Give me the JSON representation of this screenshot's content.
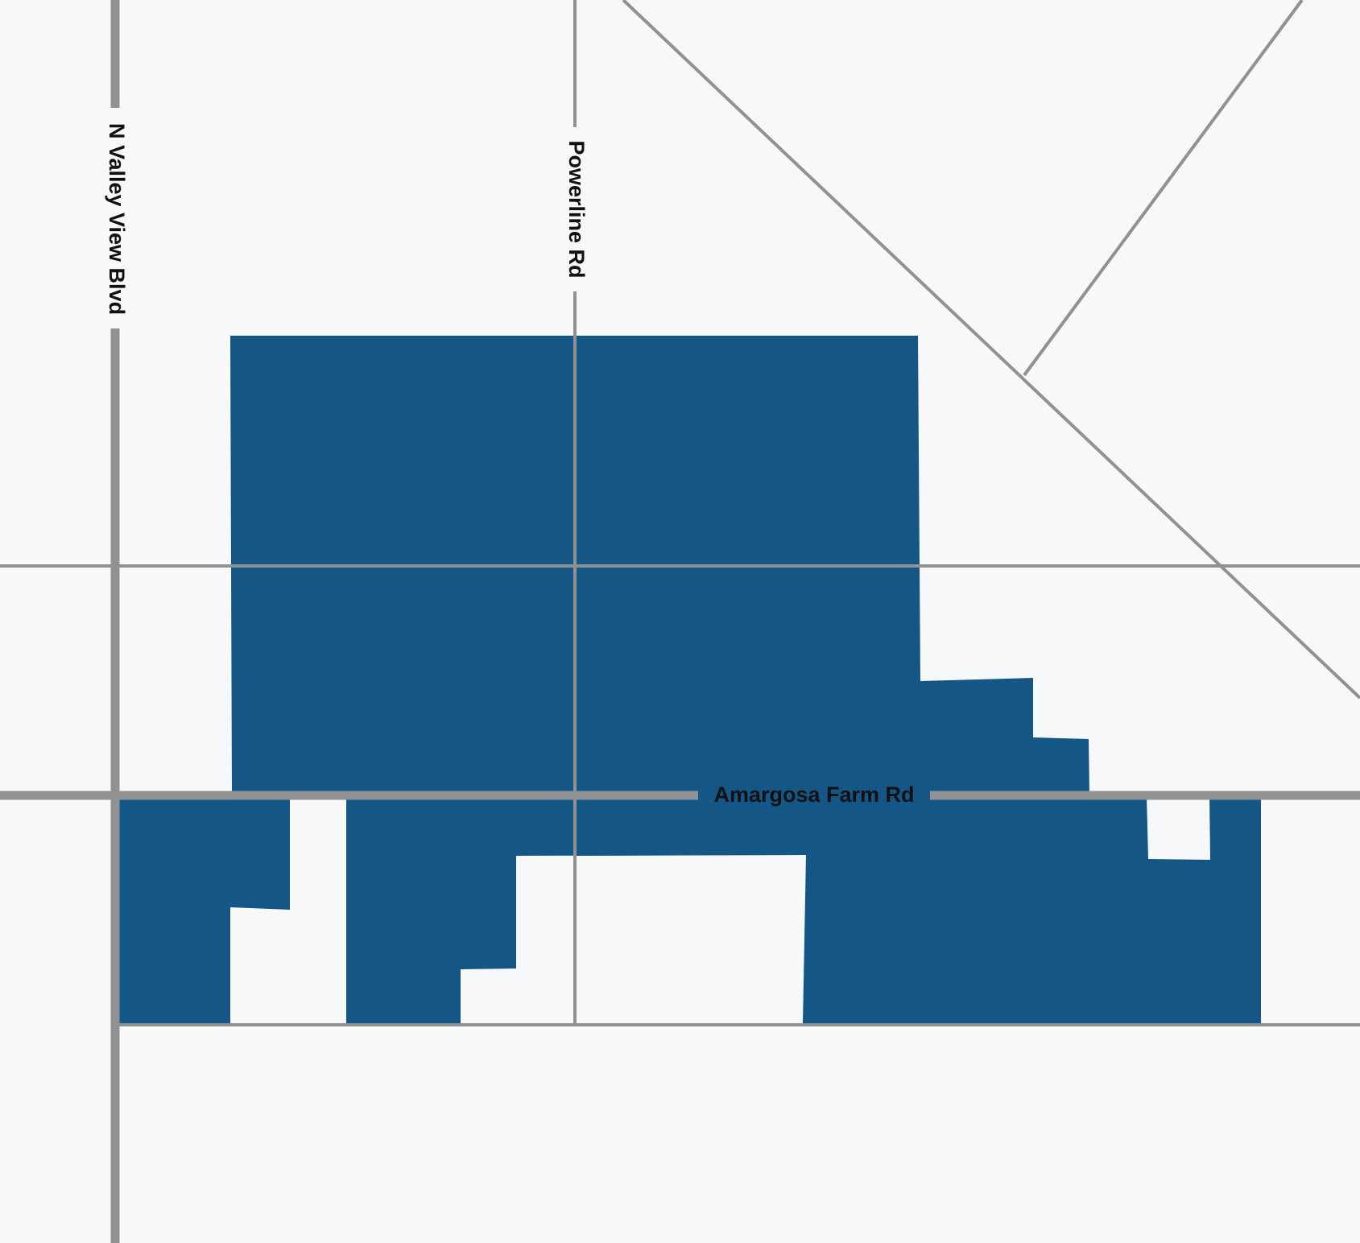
{
  "map": {
    "colors": {
      "background": "#f6f8fa",
      "parcel_fill": "#145787",
      "road_line": "#8f9193",
      "label_text": "#111111"
    },
    "roads": {
      "n_valley_view": "N Valley View Blvd",
      "powerline": "Powerline Rd",
      "amargosa_farm": "Amargosa Farm Rd"
    }
  }
}
